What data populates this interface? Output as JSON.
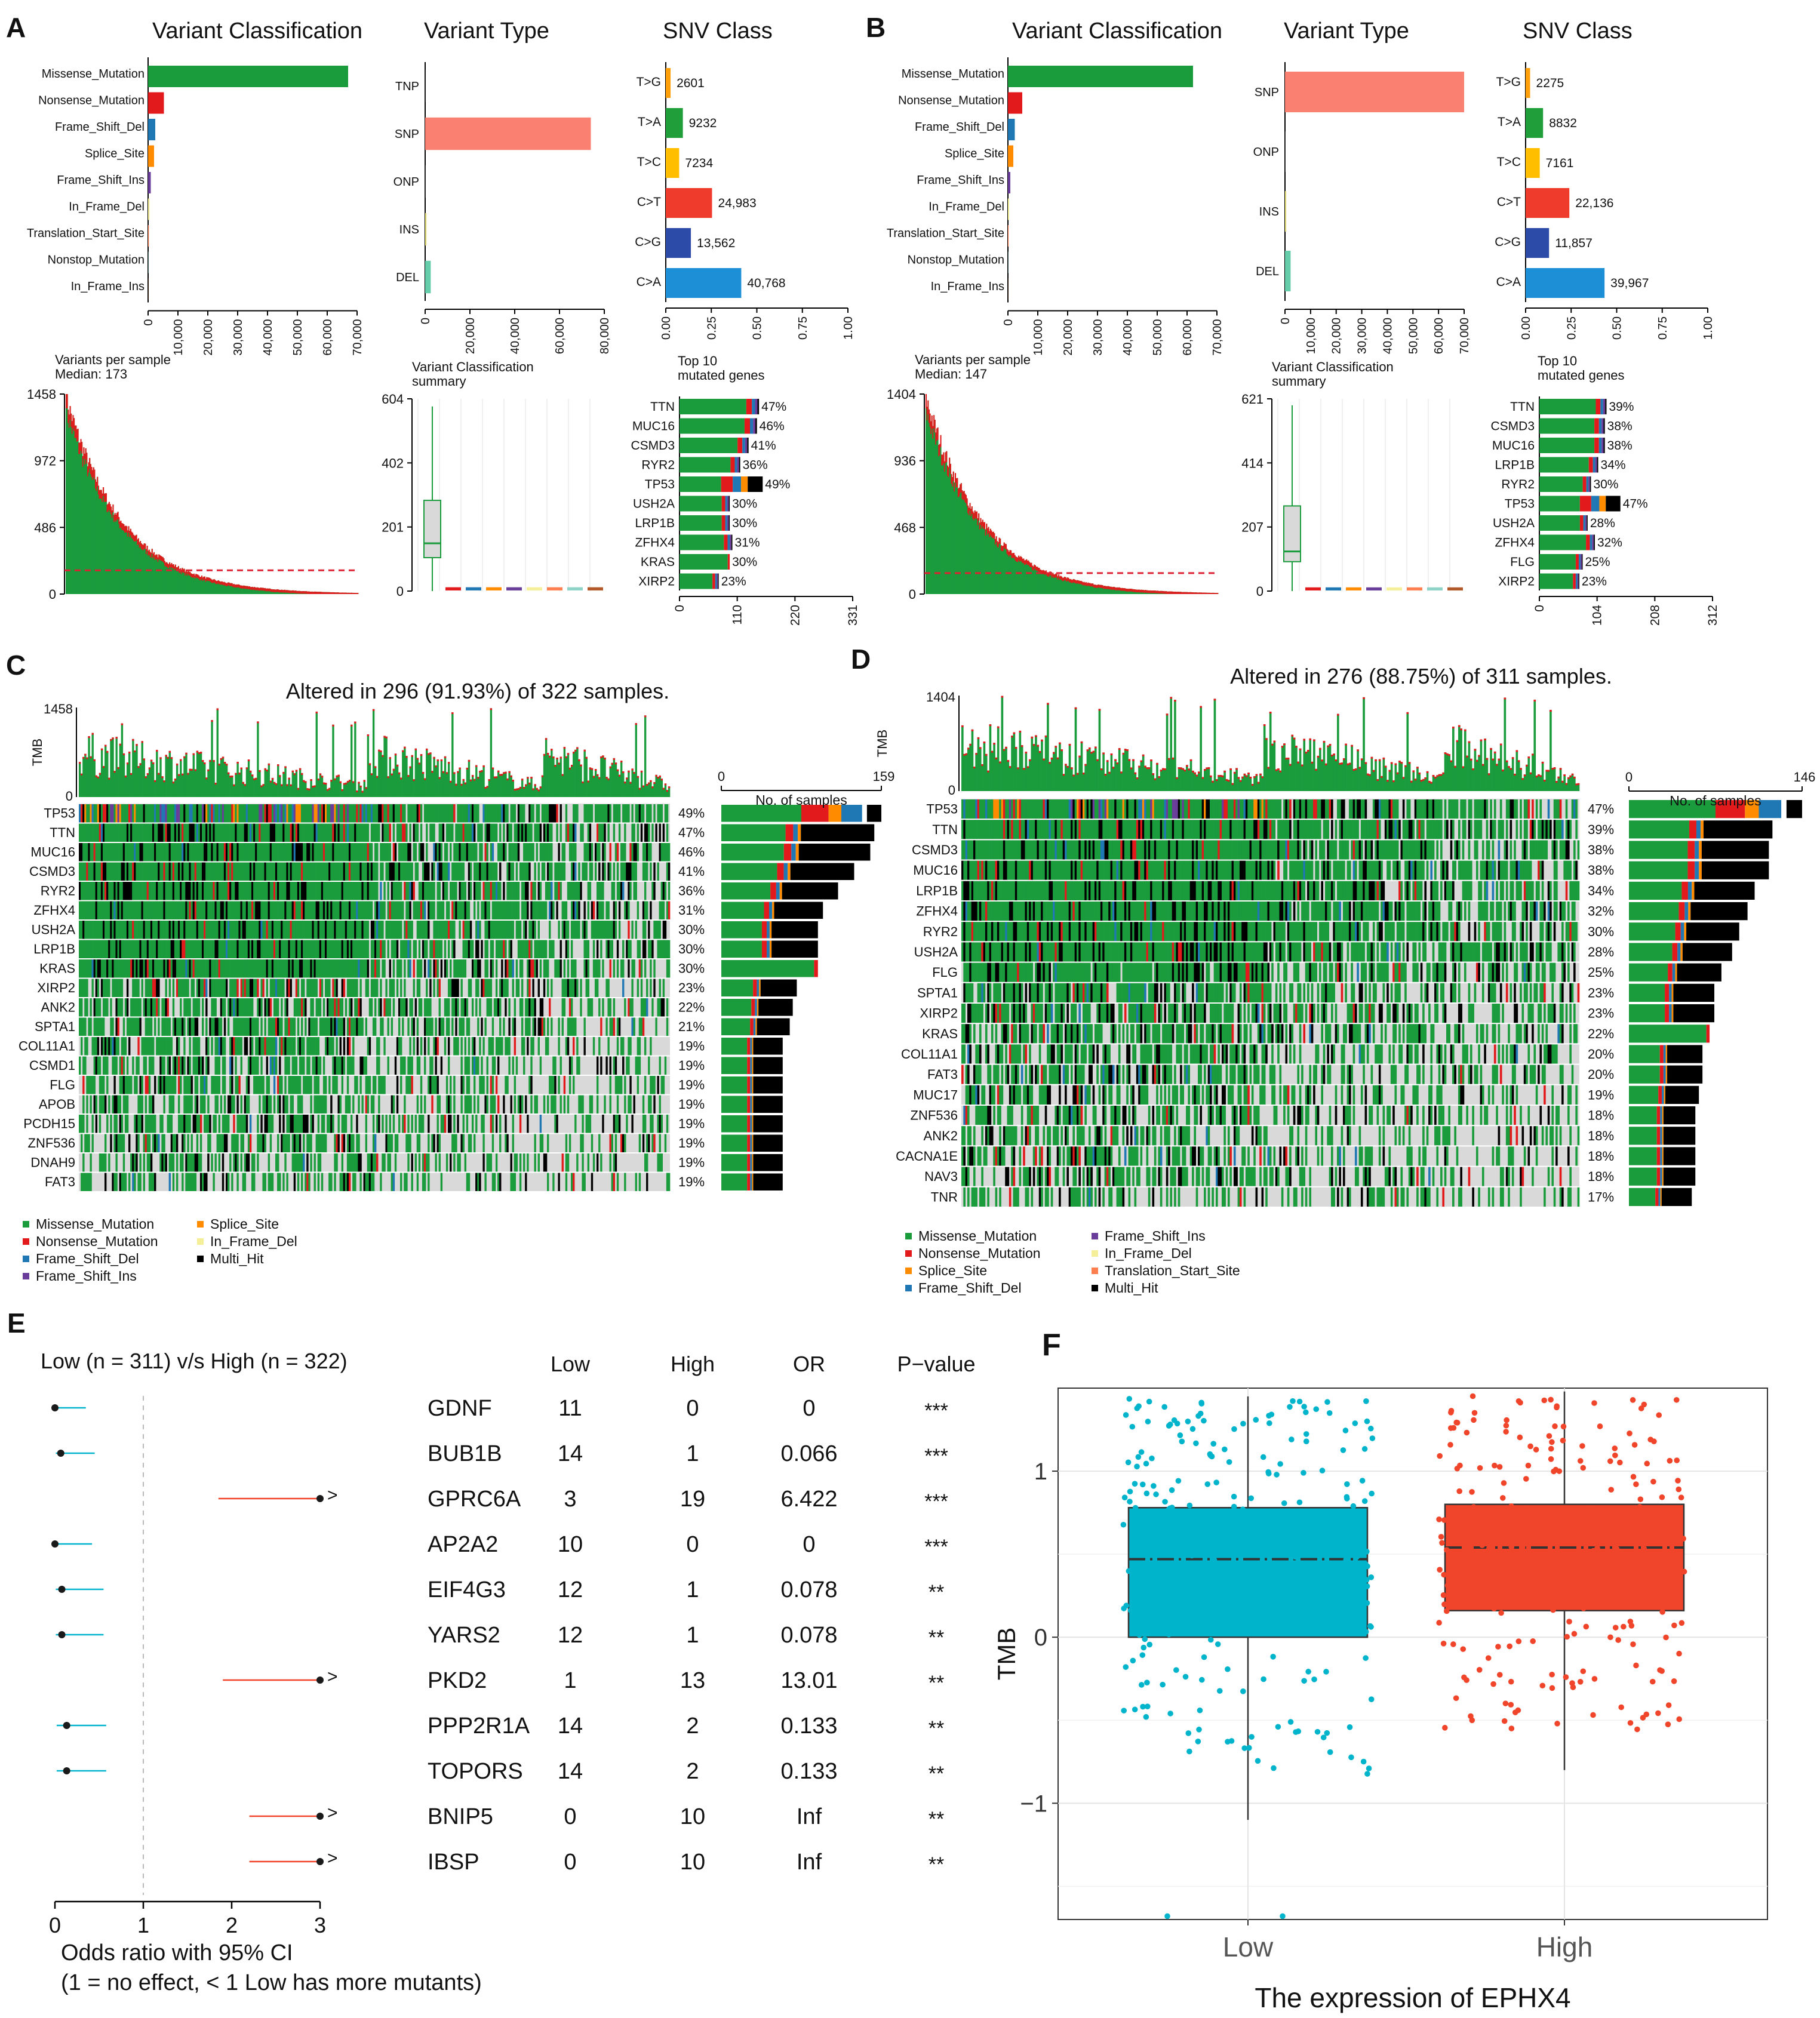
{
  "figure": {
    "colors": {
      "Missense_Mutation": "#1a9b3c",
      "Nonsense_Mutation": "#e31a1c",
      "Frame_Shift_Del": "#1f78b4",
      "Splice_Site": "#ff8c00",
      "Frame_Shift_Ins": "#6a3d9a",
      "In_Frame_Del": "#f5ef9a",
      "In_Frame_Ins": "#b15928",
      "Translation_Start_Site": "#ff7f50",
      "Nonstop_Mutation": "#8dd3c7",
      "Multi_Hit": "#000000",
      "SNP": "#fa8072",
      "DEL": "#66cdaa",
      "INS": "#e6e07a",
      "ONP": "#cccccc",
      "TNP": "#cccccc",
      "T>G": "#ff9f0a",
      "T>A": "#1f9e3a",
      "T>C": "#ffbf00",
      "C>T": "#ef3b2c",
      "C>G": "#2c4aa8",
      "C>A": "#1d8fd6",
      "low": "#00b4cc",
      "high": "#f0452a"
    }
  },
  "panel_a": {
    "letter": "A",
    "vc_title": "Variant Classification",
    "vt_title": "Variant Type",
    "snv_title": "SNV Class",
    "vc": {
      "labels": [
        "Missense_Mutation",
        "Nonsense_Mutation",
        "Frame_Shift_Del",
        "Splice_Site",
        "Frame_Shift_Ins",
        "In_Frame_Del",
        "Translation_Start_Site",
        "Nonstop_Mutation",
        "In_Frame_Ins"
      ],
      "values": [
        67000,
        5300,
        2400,
        2000,
        900,
        450,
        250,
        100,
        60
      ],
      "ticks": [
        "0",
        "10,000",
        "20,000",
        "30,000",
        "40,000",
        "50,000",
        "60,000",
        "70,000"
      ],
      "max": 70000
    },
    "vt": {
      "labels": [
        "TNP",
        "SNP",
        "ONP",
        "INS",
        "DEL"
      ],
      "values": [
        40,
        74000,
        60,
        600,
        2500
      ],
      "ticks": [
        "0",
        "20,000",
        "40,000",
        "60,000",
        "80,000"
      ],
      "max": 80000
    },
    "snv": {
      "labels": [
        "T>G",
        "T>A",
        "T>C",
        "C>T",
        "C>G",
        "C>A"
      ],
      "values": [
        2601,
        9232,
        7234,
        24983,
        13562,
        40768
      ],
      "value_labels": [
        "2601",
        "9232",
        "7234",
        "24,983",
        "13,562",
        "40,768"
      ],
      "ticks": [
        "0.00",
        "0.25",
        "0.50",
        "0.75",
        "1.00"
      ]
    },
    "vps_title": "Variants per sample",
    "vps_median": "Median: 173",
    "vps_ticks": [
      "0",
      "486",
      "972",
      "1458"
    ],
    "vps_max": 1458,
    "vps_median_value": 173,
    "vcs_title": "Variant Classification",
    "vcs_title2": "summary",
    "vcs_ticks": [
      "0",
      "201",
      "402",
      "604"
    ],
    "vcs_max": 604,
    "vcs_box": {
      "q1": 105,
      "median": 150,
      "q3": 285,
      "lo": 0,
      "hi": 580
    },
    "top_title": "Top 10",
    "top_title2": "mutated genes",
    "top": {
      "genes": [
        "TTN",
        "MUC16",
        "CSMD3",
        "RYR2",
        "TP53",
        "USH2A",
        "LRP1B",
        "ZFHX4",
        "KRAS",
        "XIRP2"
      ],
      "counts": [
        152,
        148,
        132,
        116,
        159,
        96,
        96,
        101,
        96,
        75
      ],
      "pct": [
        "47%",
        "46%",
        "41%",
        "36%",
        "49%",
        "30%",
        "30%",
        "31%",
        "30%",
        "23%"
      ],
      "ticks": [
        "0",
        "110",
        "220",
        "331"
      ],
      "max": 331
    }
  },
  "panel_b": {
    "letter": "B",
    "vc_title": "Variant Classification",
    "vt_title": "Variant Type",
    "snv_title": "SNV Class",
    "vc": {
      "labels": [
        "Missense_Mutation",
        "Nonsense_Mutation",
        "Frame_Shift_Del",
        "Splice_Site",
        "Frame_Shift_Ins",
        "In_Frame_Del",
        "Translation_Start_Site",
        "Nonstop_Mutation",
        "In_Frame_Ins"
      ],
      "values": [
        62000,
        4800,
        2300,
        1800,
        800,
        400,
        220,
        90,
        50
      ],
      "ticks": [
        "0",
        "10,000",
        "20,000",
        "30,000",
        "40,000",
        "50,000",
        "60,000",
        "70,000"
      ],
      "max": 70000
    },
    "vt": {
      "labels": [
        "SNP",
        "ONP",
        "INS",
        "DEL"
      ],
      "values": [
        70000,
        60,
        500,
        2200
      ],
      "ticks": [
        "0",
        "10,000",
        "20,000",
        "30,000",
        "40,000",
        "50,000",
        "60,000",
        "70,000"
      ],
      "max": 70000
    },
    "snv": {
      "labels": [
        "T>G",
        "T>A",
        "T>C",
        "C>T",
        "C>G",
        "C>A"
      ],
      "values": [
        2275,
        8832,
        7161,
        22136,
        11857,
        39967
      ],
      "value_labels": [
        "2275",
        "8832",
        "7161",
        "22,136",
        "11,857",
        "39,967"
      ],
      "ticks": [
        "0.00",
        "0.25",
        "0.50",
        "0.75",
        "1.00"
      ]
    },
    "vps_title": "Variants per sample",
    "vps_median": "Median: 147",
    "vps_ticks": [
      "0",
      "468",
      "936",
      "1404"
    ],
    "vps_max": 1404,
    "vps_median_value": 147,
    "vcs_title": "Variant Classification",
    "vcs_title2": "summary",
    "vcs_ticks": [
      "0",
      "207",
      "414",
      "621"
    ],
    "vcs_max": 621,
    "vcs_box": {
      "q1": 95,
      "median": 128,
      "q3": 275,
      "lo": 0,
      "hi": 600
    },
    "top_title": "Top 10",
    "top_title2": "mutated genes",
    "top": {
      "genes": [
        "TTN",
        "CSMD3",
        "MUC16",
        "LRP1B",
        "RYR2",
        "TP53",
        "USH2A",
        "ZFHX4",
        "FLG",
        "XIRP2"
      ],
      "counts": [
        121,
        118,
        118,
        106,
        93,
        146,
        87,
        100,
        78,
        72
      ],
      "pct": [
        "39%",
        "38%",
        "38%",
        "34%",
        "30%",
        "47%",
        "28%",
        "32%",
        "25%",
        "23%"
      ],
      "ticks": [
        "0",
        "104",
        "208",
        "312"
      ],
      "max": 312
    }
  },
  "panel_c": {
    "letter": "C",
    "title": "Altered in 296 (91.93%) of 322 samples.",
    "tmb_label": "TMB",
    "tmb_ticks": [
      "0",
      "1458"
    ],
    "axis_label": "No. of samples",
    "axis_ticks": [
      "0",
      "159"
    ],
    "axis_max": 159,
    "genes": [
      "TP53",
      "TTN",
      "MUC16",
      "CSMD3",
      "RYR2",
      "ZFHX4",
      "USH2A",
      "LRP1B",
      "KRAS",
      "XIRP2",
      "ANK2",
      "SPTA1",
      "COL11A1",
      "CSMD1",
      "FLG",
      "APOB",
      "PCDH15",
      "ZNF536",
      "DNAH9",
      "FAT3"
    ],
    "pct": [
      "49%",
      "47%",
      "46%",
      "41%",
      "36%",
      "31%",
      "30%",
      "30%",
      "30%",
      "23%",
      "22%",
      "21%",
      "19%",
      "19%",
      "19%",
      "19%",
      "19%",
      "19%",
      "19%",
      "19%"
    ],
    "counts": [
      159,
      152,
      148,
      132,
      116,
      101,
      96,
      96,
      96,
      75,
      71,
      68,
      61,
      61,
      61,
      61,
      61,
      61,
      61,
      61
    ],
    "legend": [
      "Missense_Mutation",
      "Nonsense_Mutation",
      "Frame_Shift_Del",
      "Frame_Shift_Ins",
      "Splice_Site",
      "In_Frame_Del",
      "Multi_Hit"
    ]
  },
  "panel_d": {
    "letter": "D",
    "title": "Altered in 276 (88.75%) of 311 samples.",
    "tmb_label": "TMB",
    "tmb_ticks": [
      "0",
      "1404"
    ],
    "axis_label": "No. of samples",
    "axis_ticks": [
      "0",
      "146"
    ],
    "axis_max": 146,
    "genes": [
      "TP53",
      "TTN",
      "CSMD3",
      "MUC16",
      "LRP1B",
      "ZFHX4",
      "RYR2",
      "USH2A",
      "FLG",
      "SPTA1",
      "XIRP2",
      "KRAS",
      "COL11A1",
      "FAT3",
      "MUC17",
      "ZNF536",
      "ANK2",
      "CACNA1E",
      "NAV3",
      "TNR"
    ],
    "pct": [
      "47%",
      "39%",
      "38%",
      "38%",
      "34%",
      "32%",
      "30%",
      "28%",
      "25%",
      "23%",
      "23%",
      "22%",
      "20%",
      "20%",
      "19%",
      "18%",
      "18%",
      "18%",
      "18%",
      "17%"
    ],
    "counts": [
      146,
      121,
      118,
      118,
      106,
      100,
      93,
      87,
      78,
      72,
      72,
      68,
      62,
      62,
      59,
      56,
      56,
      56,
      56,
      53
    ],
    "legend": [
      "Missense_Mutation",
      "Nonsense_Mutation",
      "Splice_Site",
      "Frame_Shift_Del",
      "Frame_Shift_Ins",
      "In_Frame_Del",
      "Translation_Start_Site",
      "Multi_Hit"
    ]
  },
  "panel_e": {
    "letter": "E",
    "title": "Low (n = 311) v/s High (n = 322)",
    "headers": [
      "Low",
      "High",
      "OR",
      "P−value"
    ],
    "xticks": [
      "0",
      "1",
      "2",
      "3"
    ],
    "xlabel1": "Odds ratio with 95% CI",
    "xlabel2": "(1 = no effect, < 1 Low has more mutants)",
    "arrow": ">",
    "rows": [
      {
        "gene": "GDNF",
        "low": "11",
        "high": "0",
        "or": "0",
        "p": "***",
        "est": 0,
        "lo": 0,
        "hi": 0.35,
        "group": "low",
        "capped": false
      },
      {
        "gene": "BUB1B",
        "low": "14",
        "high": "1",
        "or": "0.066",
        "p": "***",
        "est": 0.066,
        "lo": 0.01,
        "hi": 0.45,
        "group": "low",
        "capped": false
      },
      {
        "gene": "GPRC6A",
        "low": "3",
        "high": "19",
        "or": "6.422",
        "p": "***",
        "est": 3,
        "lo": 1.85,
        "hi": 3,
        "group": "high",
        "capped": true
      },
      {
        "gene": "AP2A2",
        "low": "10",
        "high": "0",
        "or": "0",
        "p": "***",
        "est": 0,
        "lo": 0,
        "hi": 0.42,
        "group": "low",
        "capped": false
      },
      {
        "gene": "EIF4G3",
        "low": "12",
        "high": "1",
        "or": "0.078",
        "p": "**",
        "est": 0.078,
        "lo": 0.01,
        "hi": 0.55,
        "group": "low",
        "capped": false
      },
      {
        "gene": "YARS2",
        "low": "12",
        "high": "1",
        "or": "0.078",
        "p": "**",
        "est": 0.078,
        "lo": 0.01,
        "hi": 0.55,
        "group": "low",
        "capped": false
      },
      {
        "gene": "PKD2",
        "low": "1",
        "high": "13",
        "or": "13.01",
        "p": "**",
        "est": 3,
        "lo": 1.9,
        "hi": 3,
        "group": "high",
        "capped": true
      },
      {
        "gene": "PPP2R1A",
        "low": "14",
        "high": "2",
        "or": "0.133",
        "p": "**",
        "est": 0.133,
        "lo": 0.02,
        "hi": 0.58,
        "group": "low",
        "capped": false
      },
      {
        "gene": "TOPORS",
        "low": "14",
        "high": "2",
        "or": "0.133",
        "p": "**",
        "est": 0.133,
        "lo": 0.02,
        "hi": 0.58,
        "group": "low",
        "capped": false
      },
      {
        "gene": "BNIP5",
        "low": "0",
        "high": "10",
        "or": "Inf",
        "p": "**",
        "est": 3,
        "lo": 2.2,
        "hi": 3,
        "group": "high",
        "capped": true
      },
      {
        "gene": "IBSP",
        "low": "0",
        "high": "10",
        "or": "Inf",
        "p": "**",
        "est": 3,
        "lo": 2.2,
        "hi": 3,
        "group": "high",
        "capped": true
      }
    ]
  },
  "panel_f": {
    "letter": "F",
    "ylabel": "TMB",
    "xlabel": "The expression of EPHX4",
    "categories": [
      "Low",
      "High"
    ],
    "yticks": [
      "−1",
      "0",
      "1"
    ],
    "yrange": [
      -1.7,
      1.5
    ],
    "boxes": [
      {
        "name": "Low",
        "q1": 0.0,
        "median": 0.47,
        "q3": 0.78,
        "whisker_lo": -1.1,
        "whisker_hi": 1.45
      },
      {
        "name": "High",
        "q1": 0.16,
        "median": 0.54,
        "q3": 0.8,
        "whisker_lo": -0.8,
        "whisker_hi": 1.48
      }
    ]
  }
}
